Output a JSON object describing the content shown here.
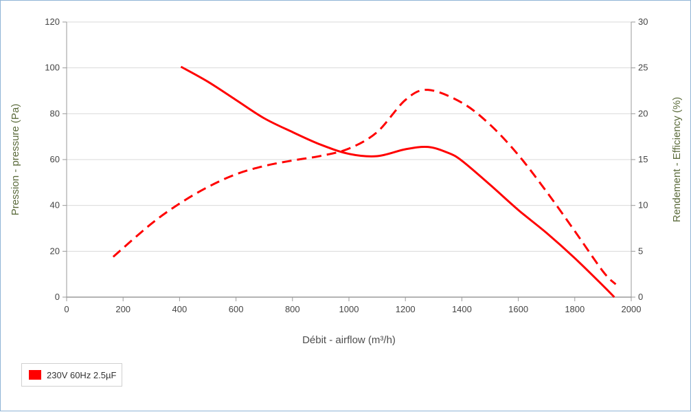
{
  "chart_data": {
    "type": "line",
    "xlabel": "Débit - airflow (m³/h)",
    "ylabel": "Pression - pressure (Pa)",
    "y2label": "Rendement - Efficiency (%)",
    "xlim": [
      0,
      2000
    ],
    "ylim": [
      0,
      120
    ],
    "y2lim": [
      0,
      30
    ],
    "x_ticks": [
      "0",
      "200",
      "400",
      "600",
      "800",
      "1000",
      "1200",
      "1400",
      "1600",
      "1800",
      "2000"
    ],
    "y_ticks": [
      "0",
      "20",
      "40",
      "60",
      "80",
      "100",
      "120"
    ],
    "y2_ticks": [
      "0",
      "5",
      "10",
      "15",
      "20",
      "25",
      "30"
    ],
    "grid": true,
    "legend_position": "bottom-left",
    "series": [
      {
        "name": "230V 60Hz 2.5µF",
        "axis": "left",
        "style": "solid",
        "color": "#ff0000",
        "points": [
          [
            405,
            100.5
          ],
          [
            500,
            94
          ],
          [
            600,
            86
          ],
          [
            700,
            78
          ],
          [
            800,
            72
          ],
          [
            900,
            66.5
          ],
          [
            1000,
            62.5
          ],
          [
            1100,
            61.5
          ],
          [
            1200,
            64.5
          ],
          [
            1280,
            65.5
          ],
          [
            1350,
            63
          ],
          [
            1400,
            59.5
          ],
          [
            1500,
            49
          ],
          [
            1600,
            38
          ],
          [
            1700,
            28
          ],
          [
            1800,
            17
          ],
          [
            1900,
            5
          ],
          [
            1940,
            0
          ]
        ]
      },
      {
        "axis": "right",
        "style": "dashed",
        "color": "#ff0000",
        "points": [
          [
            165,
            4.4
          ],
          [
            300,
            8
          ],
          [
            400,
            10.2
          ],
          [
            500,
            12
          ],
          [
            600,
            13.4
          ],
          [
            700,
            14.3
          ],
          [
            800,
            14.9
          ],
          [
            900,
            15.4
          ],
          [
            1000,
            16.2
          ],
          [
            1100,
            18
          ],
          [
            1200,
            21.5
          ],
          [
            1280,
            22.6
          ],
          [
            1400,
            21.2
          ],
          [
            1500,
            18.8
          ],
          [
            1600,
            15.5
          ],
          [
            1700,
            11.5
          ],
          [
            1800,
            7.2
          ],
          [
            1900,
            2.8
          ],
          [
            1945,
            1.4
          ]
        ]
      }
    ]
  }
}
